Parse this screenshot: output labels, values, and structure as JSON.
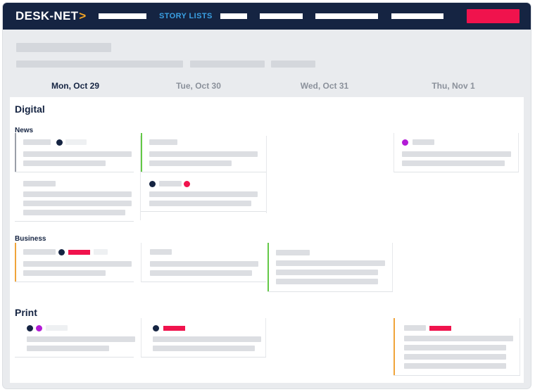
{
  "app": {
    "logo_text": "DESK-NET",
    "logo_chevron": ">"
  },
  "nav": {
    "active_label": "STORY LISTS"
  },
  "days": [
    "Mon, Oct 29",
    "Tue, Oct 30",
    "Wed, Oct 31",
    "Thu, Nov 1"
  ],
  "board": {
    "sections": [
      {
        "title": "Digital",
        "groups": [
          "News",
          "Business"
        ]
      },
      {
        "title": "Print"
      }
    ]
  },
  "colors": {
    "navy": "#152442",
    "accent_red": "#f0134d",
    "purple": "#b21bd6",
    "green": "#63c846",
    "orange": "#f0a43a",
    "gray_border": "#9a9ea8",
    "link_blue": "#3aa0e3"
  }
}
